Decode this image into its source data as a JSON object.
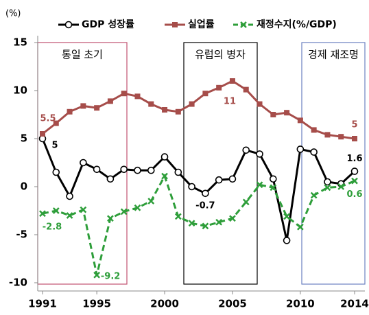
{
  "chart_data": {
    "type": "line",
    "unit_label": "(%)",
    "x": [
      1991,
      1992,
      1993,
      1994,
      1995,
      1996,
      1997,
      1998,
      1999,
      2000,
      2001,
      2002,
      2003,
      2004,
      2005,
      2006,
      2007,
      2008,
      2009,
      2010,
      2011,
      2012,
      2013,
      2014
    ],
    "xlim": [
      1991,
      2014
    ],
    "xticks": [
      1991,
      1995,
      2000,
      2005,
      2010,
      2014
    ],
    "ylim": [
      -10,
      15
    ],
    "yticks": [
      -10,
      -5,
      0,
      5,
      10,
      15
    ],
    "series": [
      {
        "name": "GDP 성장률",
        "color": "#000000",
        "marker": "circle",
        "dashed": false,
        "values": [
          5.0,
          1.5,
          -1.0,
          2.5,
          1.8,
          0.8,
          1.8,
          1.7,
          1.7,
          3.1,
          1.5,
          0.0,
          -0.7,
          0.7,
          0.8,
          3.8,
          3.4,
          0.8,
          -5.6,
          3.9,
          3.6,
          0.5,
          0.3,
          1.6
        ],
        "labeled": [
          0,
          12,
          23
        ]
      },
      {
        "name": "실업률",
        "color": "#a64d4a",
        "marker": "square",
        "dashed": false,
        "values": [
          5.5,
          6.6,
          7.8,
          8.4,
          8.2,
          8.9,
          9.7,
          9.4,
          8.6,
          8.0,
          7.8,
          8.6,
          9.7,
          10.3,
          11.0,
          10.1,
          8.6,
          7.5,
          7.7,
          6.9,
          5.9,
          5.4,
          5.2,
          5.0
        ],
        "labeled": [
          0,
          14,
          23
        ]
      },
      {
        "name": "재정수지(%/GDP)",
        "color": "#2e9e3a",
        "marker": "x",
        "dashed": true,
        "values": [
          -2.8,
          -2.5,
          -3.0,
          -2.4,
          -9.2,
          -3.3,
          -2.6,
          -2.2,
          -1.5,
          1.1,
          -3.1,
          -3.8,
          -4.1,
          -3.7,
          -3.3,
          -1.6,
          0.2,
          -0.1,
          -3.1,
          -4.2,
          -0.9,
          -0.1,
          0.0,
          0.6
        ],
        "labeled": [
          0,
          4,
          23
        ]
      }
    ],
    "annotations": [
      "통일 초기",
      "유럽의 병자",
      "경제 재조명"
    ]
  }
}
